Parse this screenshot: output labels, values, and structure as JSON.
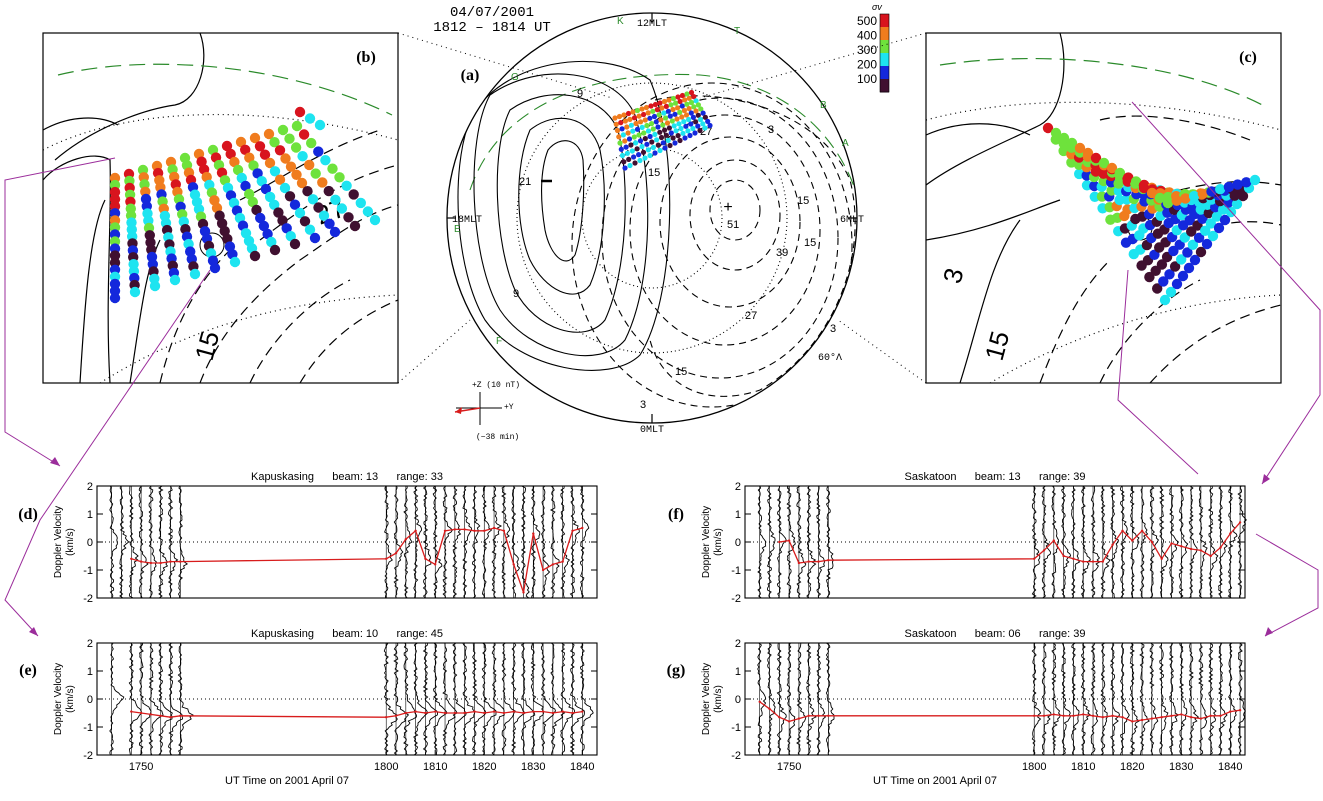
{
  "header": {
    "date": "04/07/2001",
    "time": "1812 – 1814 UT"
  },
  "labels": {
    "mlt_noon": "12MLT",
    "mlt_dusk": "18MLT",
    "mlt_dawn": "6MLT",
    "mlt_midnight": "0MLT",
    "lat": "60°Λ",
    "panel_a": "(a)",
    "panel_b": "(b)",
    "panel_c": "(c)",
    "panel_d": "(d)",
    "panel_e": "(e)",
    "panel_f": "(f)",
    "panel_g": "(g)",
    "imf_z": "+Z  (10 nT)",
    "imf_y": "+Y",
    "imf_lag": "(−38 min)",
    "sigma": "σv"
  },
  "station_letters": [
    "K",
    "T",
    "G",
    "B",
    "A",
    "E",
    "F"
  ],
  "contour_labels": [
    "9",
    "21",
    "15",
    "9",
    "3",
    "15",
    "27",
    "39",
    "51",
    "15",
    "27",
    "15",
    "3",
    "3",
    "27",
    "15",
    "3",
    "15"
  ],
  "colorbar": {
    "ticks": [
      "500",
      "400",
      "300",
      "200",
      "100"
    ],
    "colors": [
      "#d8141e",
      "#f07c1e",
      "#6ee23c",
      "#1ee4f0",
      "#1428dc",
      "#401030"
    ]
  },
  "chart_data": [
    {
      "type": "line",
      "panel": "(d)",
      "title": "Kapuskasing      beam: 13      range: 33",
      "station": "Kapuskasing",
      "beam": "13",
      "range": "33",
      "ylabel": "Doppler Velocity\n(km/s)",
      "xlabel": "UT Time on 2001 April 07",
      "ylim": [
        -2,
        2
      ],
      "yticks": [
        -2,
        -1,
        0,
        1,
        2
      ],
      "xlim": [
        1741,
        1843
      ],
      "xticks": [
        1750,
        1800,
        1810,
        1820,
        1830,
        1840
      ],
      "show_xtick_labels": false,
      "spectra_x": [
        1744,
        1746,
        1748,
        1750,
        1752,
        1754,
        1756,
        1758,
        1800,
        1802,
        1804,
        1806,
        1808,
        1810,
        1812,
        1814,
        1816,
        1818,
        1820,
        1822,
        1824,
        1826,
        1828,
        1830,
        1832,
        1834,
        1836,
        1838,
        1840
      ],
      "series": [
        {
          "color": "#d81c1c",
          "x": [
            1748,
            1750,
            1752,
            1754,
            1756,
            1758,
            1800,
            1802,
            1804,
            1806,
            1808,
            1810,
            1812,
            1814,
            1816,
            1818,
            1820,
            1822,
            1824,
            1826,
            1828,
            1830,
            1832,
            1834,
            1836,
            1838,
            1840
          ],
          "values": [
            -0.6,
            -0.7,
            -0.75,
            -0.75,
            -0.7,
            -0.7,
            -0.6,
            -0.4,
            0.1,
            0.4,
            -0.6,
            -0.8,
            0.4,
            0.45,
            0.45,
            0.4,
            0.4,
            0.5,
            0.4,
            -0.8,
            -1.8,
            0.3,
            -1.0,
            -0.8,
            -0.7,
            0.4,
            0.5
          ]
        }
      ]
    },
    {
      "type": "line",
      "panel": "(e)",
      "title": "Kapuskasing      beam: 10      range: 45",
      "station": "Kapuskasing",
      "beam": "10",
      "range": "45",
      "ylabel": "Doppler Velocity\n(km/s)",
      "xlabel": "UT Time on 2001 April 07",
      "ylim": [
        -2,
        2
      ],
      "yticks": [
        -2,
        -1,
        0,
        1,
        2
      ],
      "xlim": [
        1741,
        1843
      ],
      "xticks": [
        1750,
        1800,
        1810,
        1820,
        1830,
        1840
      ],
      "show_xtick_labels": true,
      "spectra_x": [
        1744,
        1748,
        1750,
        1752,
        1754,
        1756,
        1758,
        1800,
        1802,
        1804,
        1806,
        1808,
        1810,
        1812,
        1814,
        1816,
        1818,
        1820,
        1822,
        1824,
        1826,
        1828,
        1830,
        1832,
        1834,
        1836,
        1838,
        1840
      ],
      "series": [
        {
          "color": "#d81c1c",
          "x": [
            1748,
            1750,
            1752,
            1754,
            1756,
            1758,
            1800,
            1802,
            1804,
            1806,
            1808,
            1810,
            1812,
            1814,
            1816,
            1818,
            1820,
            1822,
            1824,
            1826,
            1828,
            1830,
            1832,
            1834,
            1836,
            1838,
            1840
          ],
          "values": [
            -0.45,
            -0.5,
            -0.55,
            -0.6,
            -0.65,
            -0.6,
            -0.65,
            -0.6,
            -0.5,
            -0.45,
            -0.5,
            -0.45,
            -0.5,
            -0.5,
            -0.5,
            -0.45,
            -0.5,
            -0.45,
            -0.5,
            -0.45,
            -0.5,
            -0.45,
            -0.45,
            -0.5,
            -0.45,
            -0.5,
            -0.45
          ]
        }
      ]
    },
    {
      "type": "line",
      "panel": "(f)",
      "title": "Saskatoon      beam: 13      range: 39",
      "station": "Saskatoon",
      "beam": "13",
      "range": "39",
      "ylabel": "Doppler Velocity\n(km/s)",
      "xlabel": "UT Time on 2001 April 07",
      "ylim": [
        -2,
        2
      ],
      "yticks": [
        -2,
        -1,
        0,
        1,
        2
      ],
      "xlim": [
        1741,
        1843
      ],
      "xticks": [
        1750,
        1800,
        1810,
        1820,
        1830,
        1840
      ],
      "show_xtick_labels": false,
      "spectra_x": [
        1744,
        1746,
        1748,
        1750,
        1752,
        1754,
        1756,
        1758,
        1800,
        1802,
        1804,
        1806,
        1808,
        1810,
        1812,
        1814,
        1816,
        1818,
        1820,
        1822,
        1824,
        1826,
        1828,
        1830,
        1832,
        1834,
        1836,
        1838,
        1840,
        1842
      ],
      "series": [
        {
          "color": "#d81c1c",
          "x": [
            1748,
            1750,
            1752,
            1754,
            1756,
            1758,
            1800,
            1802,
            1804,
            1806,
            1808,
            1810,
            1812,
            1814,
            1816,
            1818,
            1820,
            1822,
            1824,
            1826,
            1828,
            1830,
            1832,
            1834,
            1836,
            1838,
            1840,
            1842
          ],
          "values": [
            0.0,
            0.05,
            -0.75,
            -0.7,
            -0.7,
            -0.65,
            -0.6,
            -0.3,
            0.05,
            -0.5,
            -0.6,
            -0.7,
            -0.7,
            -0.7,
            -0.1,
            0.4,
            0.05,
            0.4,
            0.0,
            -0.6,
            -0.05,
            -0.15,
            -0.25,
            -0.3,
            -0.5,
            -0.2,
            0.3,
            0.7
          ]
        }
      ]
    },
    {
      "type": "line",
      "panel": "(g)",
      "title": "Saskatoon      beam: 06      range: 39",
      "station": "Saskatoon",
      "beam": "06",
      "range": "39",
      "ylabel": "Doppler Velocity\n(km/s)",
      "xlabel": "UT Time on 2001 April 07",
      "ylim": [
        -2,
        2
      ],
      "yticks": [
        -2,
        -1,
        0,
        1,
        2
      ],
      "xlim": [
        1741,
        1843
      ],
      "xticks": [
        1750,
        1800,
        1810,
        1820,
        1830,
        1840
      ],
      "show_xtick_labels": true,
      "spectra_x": [
        1744,
        1746,
        1748,
        1750,
        1752,
        1754,
        1756,
        1758,
        1800,
        1802,
        1804,
        1806,
        1808,
        1810,
        1812,
        1814,
        1816,
        1818,
        1820,
        1822,
        1824,
        1826,
        1828,
        1830,
        1832,
        1834,
        1836,
        1838,
        1840,
        1842
      ],
      "series": [
        {
          "color": "#d81c1c",
          "x": [
            1744,
            1746,
            1748,
            1750,
            1752,
            1754,
            1756,
            1758,
            1800,
            1802,
            1804,
            1806,
            1808,
            1810,
            1812,
            1814,
            1816,
            1818,
            1820,
            1822,
            1824,
            1826,
            1828,
            1830,
            1832,
            1834,
            1836,
            1838,
            1840,
            1842
          ],
          "values": [
            -0.1,
            -0.35,
            -0.65,
            -0.8,
            -0.7,
            -0.6,
            -0.6,
            -0.6,
            -0.6,
            -0.6,
            -0.55,
            -0.6,
            -0.6,
            -0.55,
            -0.6,
            -0.65,
            -0.6,
            -0.65,
            -0.8,
            -0.75,
            -0.7,
            -0.65,
            -0.6,
            -0.55,
            -0.65,
            -0.7,
            -0.6,
            -0.6,
            -0.45,
            -0.4
          ]
        }
      ]
    }
  ]
}
